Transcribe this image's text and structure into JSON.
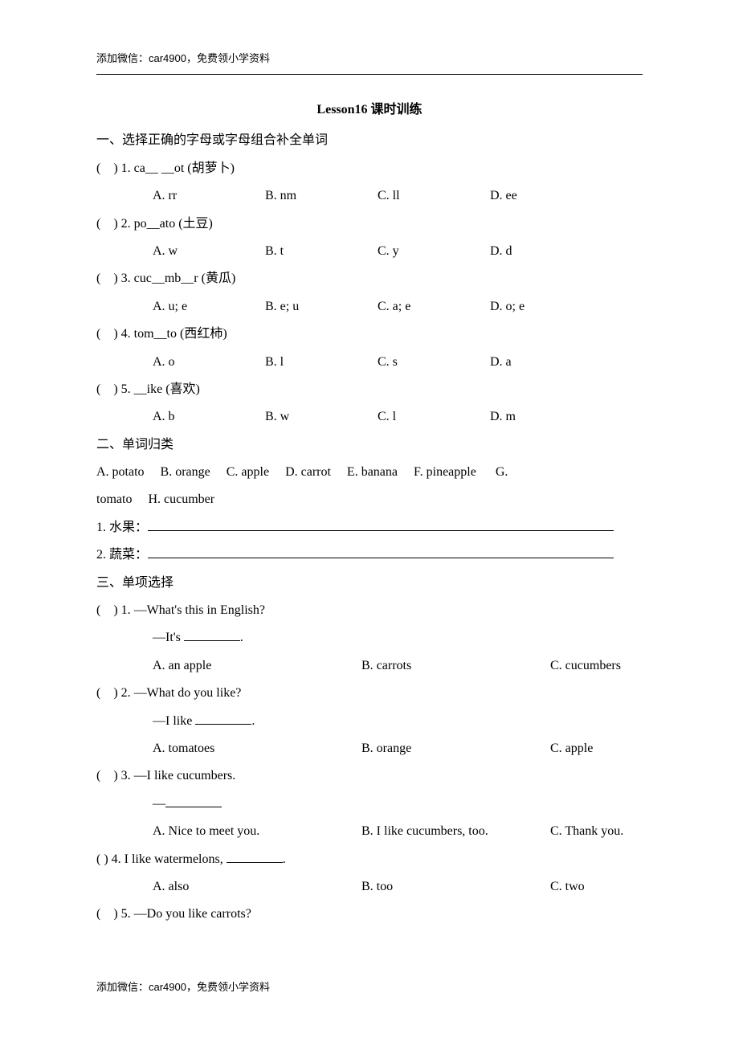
{
  "header_note": "添加微信：car4900，免费领小学资料",
  "footer_note": "添加微信：car4900，免费领小学资料",
  "title": "Lesson16 课时训练",
  "section1": {
    "heading": "一、选择正确的字母或字母组合补全单词",
    "q1": {
      "stem": "(    ) 1. ca__ __ot (胡萝卜)",
      "A": "A. rr",
      "B": "B. nm",
      "C": "C. ll",
      "D": "D. ee"
    },
    "q2": {
      "stem": "(    ) 2. po__ato (土豆)",
      "A": "A. w",
      "B": "B. t",
      "C": "C. y",
      "D": "D. d"
    },
    "q3": {
      "stem": "(    ) 3. cuc__mb__r (黄瓜)",
      "A": "A. u; e",
      "B": "B. e; u",
      "C": "C. a; e",
      "D": "D. o; e"
    },
    "q4": {
      "stem": "(    ) 4. tom__to (西红柿)",
      "A": "A. o",
      "B": "B. l",
      "C": "C. s",
      "D": "D. a"
    },
    "q5": {
      "stem": "(    ) 5. __ike (喜欢)",
      "A": "A. b",
      "B": "B. w",
      "C": "C. l",
      "D": "D. m"
    }
  },
  "section2": {
    "heading": "二、单词归类",
    "bank_line1": "A. potato     B. orange     C. apple     D. carrot     E. banana     F. pineapple      G.",
    "bank_line2": "tomato     H. cucumber",
    "f1_label": "1. 水果：",
    "f2_label": "2. 蔬菜："
  },
  "section3": {
    "heading": "三、单项选择",
    "q1": {
      "stem": "(    ) 1. —What's this in English?",
      "line2_pre": "—It's ",
      "line2_post": ".",
      "A": "A. an apple",
      "B": "B. carrots",
      "C": "C. cucumbers"
    },
    "q2": {
      "stem": "(    ) 2. —What do you like?",
      "line2_pre": "—I like ",
      "line2_post": ".",
      "A": "A. tomatoes",
      "B": "B. orange",
      "C": "C. apple"
    },
    "q3": {
      "stem": "(    ) 3. —I like cucumbers.",
      "line2_pre": "—",
      "line2_post": "",
      "A": "A. Nice to meet you.",
      "B": "B. I like cucumbers, too.",
      "C": "C. Thank you."
    },
    "q4": {
      "stem_pre": "(    ) 4. I like watermelons, ",
      "stem_post": ".",
      "A": "A. also",
      "B": "B. too",
      "C": "C. two"
    },
    "q5": {
      "stem": "(    ) 5. —Do you like carrots?"
    }
  }
}
